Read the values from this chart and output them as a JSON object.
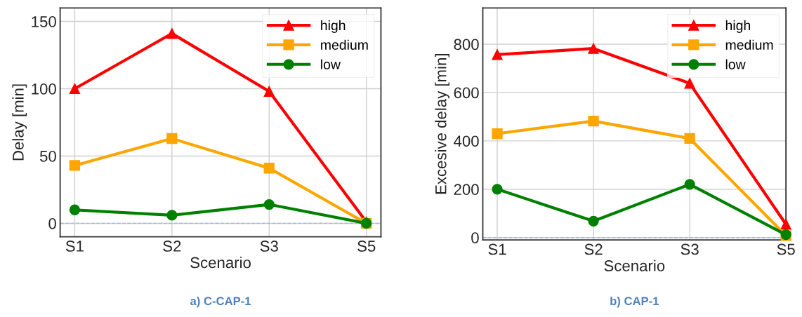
{
  "chart_data": [
    {
      "type": "line",
      "xlabel": "Scenario",
      "ylabel": "Delay [min]",
      "categories": [
        "S1",
        "S2",
        "S3",
        "S5"
      ],
      "ylim": [
        -10,
        160
      ],
      "yticks": [
        0,
        50,
        100,
        150
      ],
      "grid": true,
      "legend": "top right",
      "series": [
        {
          "name": "high",
          "color": "#ff0000",
          "marker": "triangle",
          "values": [
            100,
            141,
            98,
            1
          ]
        },
        {
          "name": "medium",
          "color": "#ffa500",
          "marker": "square",
          "values": [
            43,
            63,
            41,
            0
          ]
        },
        {
          "name": "low",
          "color": "#008000",
          "marker": "circle",
          "values": [
            10,
            6,
            14,
            0
          ]
        }
      ],
      "ref_lines": [
        {
          "axis": "y",
          "value": 0,
          "color": "#a9b8d4",
          "line_style": "dashed"
        }
      ],
      "annotations": [
        "a) C-CAP-1"
      ]
    },
    {
      "type": "line",
      "xlabel": "Scenario",
      "ylabel": "Excesive delay [min]",
      "categories": [
        "S1",
        "S2",
        "S3",
        "S5"
      ],
      "ylim": [
        -10,
        950
      ],
      "yticks": [
        0,
        200,
        400,
        600,
        800
      ],
      "grid": true,
      "legend": "top right",
      "series": [
        {
          "name": "high",
          "color": "#ff0000",
          "marker": "triangle",
          "values": [
            757,
            782,
            638,
            55
          ]
        },
        {
          "name": "medium",
          "color": "#ffa500",
          "marker": "square",
          "values": [
            430,
            482,
            410,
            8
          ]
        },
        {
          "name": "low",
          "color": "#008000",
          "marker": "circle",
          "values": [
            200,
            68,
            220,
            12
          ]
        }
      ],
      "ref_lines": [
        {
          "axis": "y",
          "value": 0,
          "color": "#a9b8d4",
          "line_style": "dashed"
        }
      ],
      "annotations": [
        "b) CAP-1"
      ]
    }
  ]
}
